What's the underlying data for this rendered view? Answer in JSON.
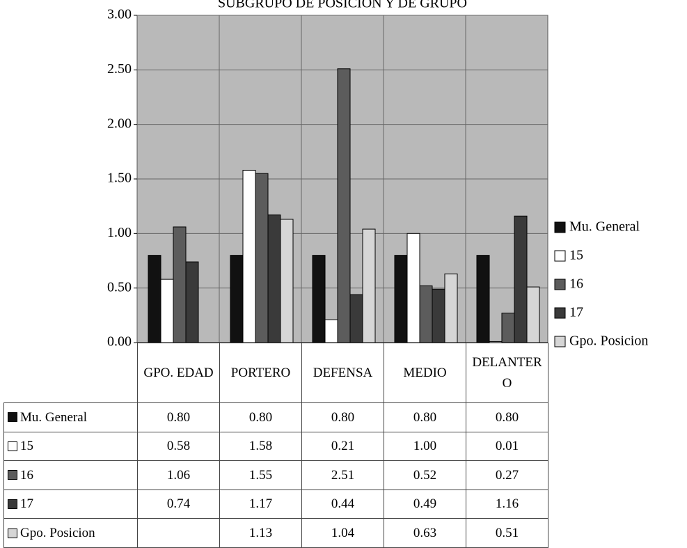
{
  "chart_data": {
    "type": "bar",
    "title": "SUBGRUPO DE POSICION Y DE GRUPO",
    "categories": [
      "GPO. EDAD",
      "PORTERO",
      "DEFENSA",
      "MEDIO",
      "DELANTERO"
    ],
    "series": [
      {
        "name": "Mu. General",
        "color": "#111111",
        "values": [
          0.8,
          0.8,
          0.8,
          0.8,
          0.8
        ],
        "value_labels": [
          "0.80",
          "0.80",
          "0.80",
          "0.80",
          "0.80"
        ]
      },
      {
        "name": "15",
        "color": "#ffffff",
        "values": [
          0.58,
          1.58,
          0.21,
          1.0,
          0.01
        ],
        "value_labels": [
          "0.58",
          "1.58",
          "0.21",
          "1.00",
          "0.01"
        ]
      },
      {
        "name": "16",
        "color": "#5c5c5c",
        "values": [
          1.06,
          1.55,
          2.51,
          0.52,
          0.27
        ],
        "value_labels": [
          "1.06",
          "1.55",
          "2.51",
          "0.52",
          "0.27"
        ]
      },
      {
        "name": "17",
        "color": "#3a3a3a",
        "values": [
          0.74,
          1.17,
          0.44,
          0.49,
          1.16
        ],
        "value_labels": [
          "0.74",
          "1.17",
          "0.44",
          "0.49",
          "1.16"
        ]
      },
      {
        "name": "Gpo. Posicion",
        "color": "#d6d6d6",
        "values": [
          null,
          1.13,
          1.04,
          0.63,
          0.51
        ],
        "value_labels": [
          null,
          "1.13",
          "1.04",
          "0.63",
          "0.51"
        ]
      }
    ],
    "ylim": [
      0,
      3
    ],
    "yticks": [
      {
        "value": 0,
        "label": "0.00"
      },
      {
        "value": 0.5,
        "label": "0.50"
      },
      {
        "value": 1,
        "label": "1.00"
      },
      {
        "value": 1.5,
        "label": "1.50"
      },
      {
        "value": 2,
        "label": "2.00"
      },
      {
        "value": 2.5,
        "label": "2.50"
      },
      {
        "value": 3,
        "label": "3.00"
      }
    ],
    "grid": true,
    "legend": "right"
  }
}
